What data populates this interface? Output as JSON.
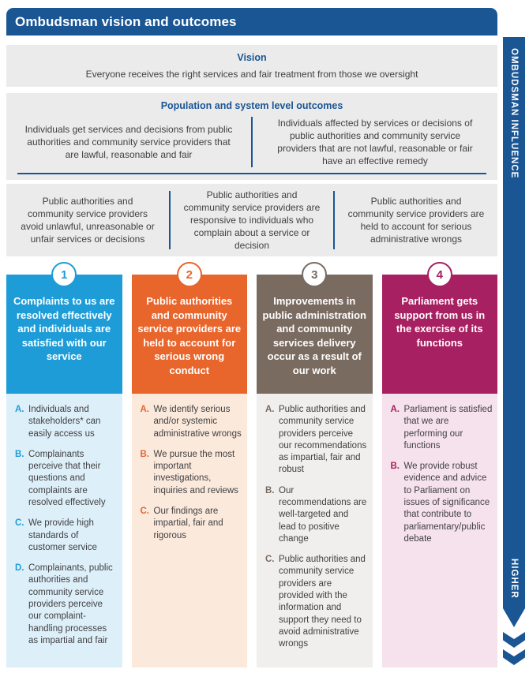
{
  "title": "Ombudsman vision and outcomes",
  "sidebar": {
    "top_label": "OMBUDSMAN INFLUENCE",
    "bottom_label": "HIGHER",
    "arrow_icon": "double-chevron-down"
  },
  "vision": {
    "heading": "Vision",
    "text": "Everyone receives the right services and fair treatment from those we oversight"
  },
  "population_outcomes": {
    "heading": "Population and system level outcomes",
    "cells": [
      "Individuals get services and decisions from public authorities and community service providers that are lawful, reasonable and fair",
      "Individuals affected by services or decisions of public authorities and community service providers that are not lawful, reasonable or fair have an effective remedy"
    ]
  },
  "system_outcomes": [
    "Public authorities and community service providers avoid unlawful, unreasonable or unfair services or decisions",
    "Public authorities and community service providers are responsive to individuals who complain about a service or decision",
    "Public authorities and community service providers are held to account for serious administrative wrongs"
  ],
  "columns": [
    {
      "number": "1",
      "title": "Complaints to us are resolved effectively and individuals are satisfied with our service",
      "accent": "#1E9CD7",
      "tint": "#DDEFF9",
      "items": [
        {
          "letter": "A.",
          "text": "Individuals and stakeholders* can easily access us"
        },
        {
          "letter": "B.",
          "text": "Complainants perceive that their questions and complaints are resolved effectively"
        },
        {
          "letter": "C.",
          "text": "We provide high standards of customer service"
        },
        {
          "letter": "D.",
          "text": "Complainants, public authorities and community service providers perceive our complaint-handling processes as impartial and fair"
        }
      ]
    },
    {
      "number": "2",
      "title": "Public authorities and community service providers are held to account for serious wrong conduct",
      "accent": "#E8652C",
      "tint": "#FBE9DC",
      "items": [
        {
          "letter": "A.",
          "text": "We identify serious and/or systemic administrative wrongs"
        },
        {
          "letter": "B.",
          "text": "We pursue the most important investigations, inquiries and reviews"
        },
        {
          "letter": "C.",
          "text": "Our findings are impartial, fair and rigorous"
        }
      ]
    },
    {
      "number": "3",
      "title": "Improvements in public administration and community services delivery occur as a result of our work",
      "accent": "#7A6B61",
      "tint": "#F0EFED",
      "items": [
        {
          "letter": "A.",
          "text": "Public authorities and community service providers perceive our recommendations as impartial, fair and robust"
        },
        {
          "letter": "B.",
          "text": "Our recommendations are well-targeted and lead to positive change"
        },
        {
          "letter": "C.",
          "text": "Public authorities and community service providers are provided with the information and support they need to avoid administrative wrongs"
        }
      ]
    },
    {
      "number": "4",
      "title": "Parliament gets support from us in the exercise of its functions",
      "accent": "#A72061",
      "tint": "#F6E2EC",
      "items": [
        {
          "letter": "A.",
          "text": "Parliament is satisfied that we are performing our functions"
        },
        {
          "letter": "B.",
          "text": "We provide robust evidence and advice to Parliament on issues of significance that contribute to parliamentary/public debate"
        }
      ]
    }
  ],
  "colors": {
    "navy": "#1A5694",
    "panel_gray": "#EBEBEB",
    "body_text": "#414042"
  }
}
